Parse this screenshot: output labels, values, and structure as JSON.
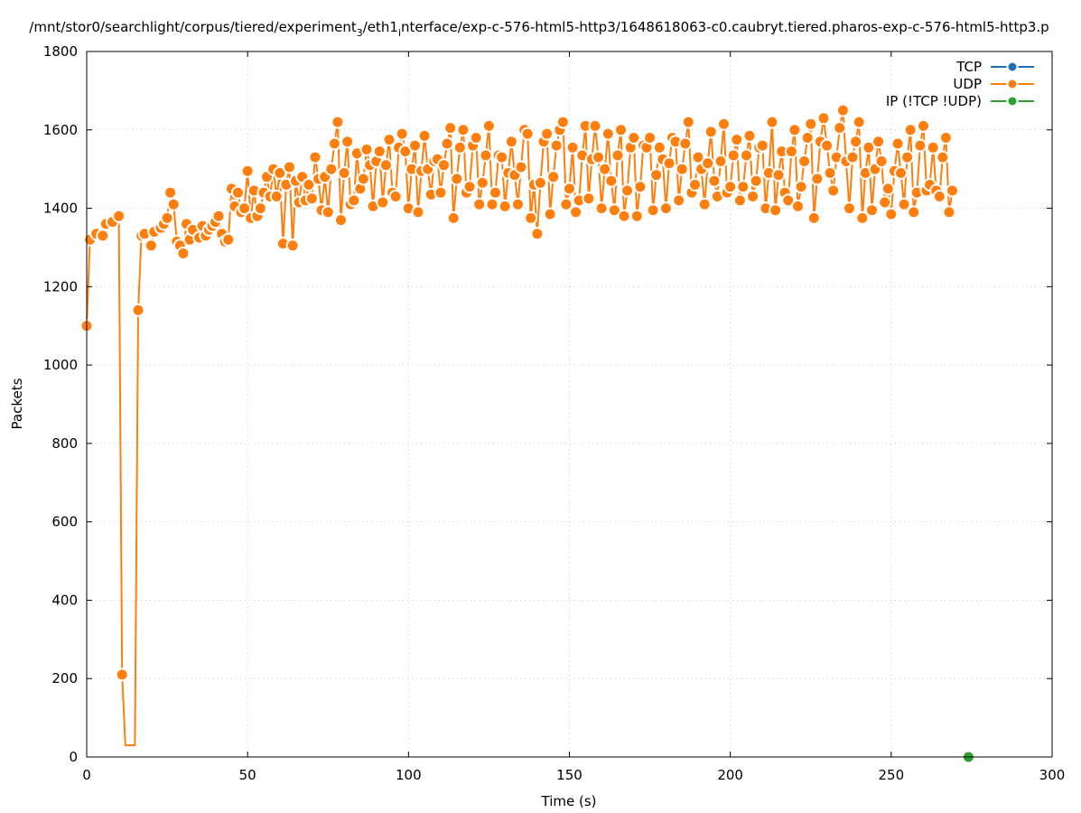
{
  "chart_data": {
    "type": "line",
    "title": "/mnt/stor0/searchlight/corpus/tiered/experiment",
    "title_sub": "3",
    "title_mid": "/eth1",
    "title_sub2": "i",
    "title_tail": "nterface/exp-c-576-html5-http3/1648618063-c0.caubryt.tiered.pharos-exp-c-576-html5-http3.p",
    "xlabel": "Time (s)",
    "ylabel": "Packets",
    "xlim": [
      0,
      300
    ],
    "ylim": [
      0,
      1800
    ],
    "xticks": [
      "0",
      "50",
      "100",
      "150",
      "200",
      "250",
      "300"
    ],
    "yticks": [
      "0",
      "200",
      "400",
      "600",
      "800",
      "1000",
      "1200",
      "1400",
      "1600",
      "1800"
    ],
    "grid": true,
    "legend_position": "top-right",
    "series": [
      {
        "name": "TCP",
        "color": "#1f6fb5",
        "points": []
      },
      {
        "name": "UDP",
        "color": "#ff7f0e",
        "points": [
          [
            0,
            1100
          ],
          [
            1,
            1320
          ],
          [
            3,
            1335
          ],
          [
            5,
            1330
          ],
          [
            6,
            1360
          ],
          [
            8,
            1365
          ],
          [
            10,
            1380
          ],
          [
            11,
            210
          ],
          [
            12,
            30
          ],
          [
            15,
            30
          ],
          [
            16,
            1140
          ],
          [
            17,
            1330
          ],
          [
            18,
            1335
          ],
          [
            20,
            1305
          ],
          [
            21,
            1340
          ],
          [
            23,
            1350
          ],
          [
            24,
            1360
          ],
          [
            25,
            1375
          ],
          [
            26,
            1440
          ],
          [
            27,
            1410
          ],
          [
            28,
            1315
          ],
          [
            29,
            1305
          ],
          [
            30,
            1285
          ],
          [
            31,
            1360
          ],
          [
            32,
            1320
          ],
          [
            33,
            1345
          ],
          [
            35,
            1325
          ],
          [
            36,
            1355
          ],
          [
            37,
            1330
          ],
          [
            38,
            1345
          ],
          [
            39,
            1355
          ],
          [
            40,
            1365
          ],
          [
            41,
            1380
          ],
          [
            42,
            1335
          ],
          [
            43,
            1315
          ],
          [
            44,
            1320
          ],
          [
            45,
            1450
          ],
          [
            46,
            1405
          ],
          [
            47,
            1440
          ],
          [
            48,
            1390
          ],
          [
            49,
            1400
          ],
          [
            50,
            1495
          ],
          [
            51,
            1375
          ],
          [
            52,
            1445
          ],
          [
            53,
            1380
          ],
          [
            54,
            1400
          ],
          [
            55,
            1440
          ],
          [
            56,
            1480
          ],
          [
            57,
            1430
          ],
          [
            58,
            1500
          ],
          [
            59,
            1430
          ],
          [
            60,
            1490
          ],
          [
            61,
            1310
          ],
          [
            62,
            1460
          ],
          [
            63,
            1505
          ],
          [
            64,
            1305
          ],
          [
            65,
            1470
          ],
          [
            66,
            1415
          ],
          [
            67,
            1480
          ],
          [
            68,
            1420
          ],
          [
            69,
            1460
          ],
          [
            70,
            1425
          ],
          [
            71,
            1530
          ],
          [
            72,
            1475
          ],
          [
            73,
            1395
          ],
          [
            74,
            1480
          ],
          [
            75,
            1390
          ],
          [
            76,
            1500
          ],
          [
            77,
            1565
          ],
          [
            78,
            1620
          ],
          [
            79,
            1370
          ],
          [
            80,
            1490
          ],
          [
            81,
            1570
          ],
          [
            82,
            1410
          ],
          [
            83,
            1420
          ],
          [
            84,
            1540
          ],
          [
            85,
            1450
          ],
          [
            86,
            1475
          ],
          [
            87,
            1550
          ],
          [
            88,
            1510
          ],
          [
            89,
            1405
          ],
          [
            90,
            1520
          ],
          [
            91,
            1545
          ],
          [
            92,
            1415
          ],
          [
            93,
            1510
          ],
          [
            94,
            1575
          ],
          [
            95,
            1440
          ],
          [
            96,
            1430
          ],
          [
            97,
            1555
          ],
          [
            98,
            1590
          ],
          [
            99,
            1545
          ],
          [
            100,
            1400
          ],
          [
            101,
            1500
          ],
          [
            102,
            1560
          ],
          [
            103,
            1390
          ],
          [
            104,
            1495
          ],
          [
            105,
            1585
          ],
          [
            106,
            1500
          ],
          [
            107,
            1435
          ],
          [
            108,
            1520
          ],
          [
            109,
            1525
          ],
          [
            110,
            1440
          ],
          [
            111,
            1510
          ],
          [
            112,
            1565
          ],
          [
            113,
            1605
          ],
          [
            114,
            1375
          ],
          [
            115,
            1475
          ],
          [
            116,
            1555
          ],
          [
            117,
            1600
          ],
          [
            118,
            1440
          ],
          [
            119,
            1455
          ],
          [
            120,
            1560
          ],
          [
            121,
            1580
          ],
          [
            122,
            1410
          ],
          [
            123,
            1465
          ],
          [
            124,
            1535
          ],
          [
            125,
            1610
          ],
          [
            126,
            1410
          ],
          [
            127,
            1440
          ],
          [
            128,
            1535
          ],
          [
            129,
            1530
          ],
          [
            130,
            1405
          ],
          [
            131,
            1490
          ],
          [
            132,
            1570
          ],
          [
            133,
            1485
          ],
          [
            134,
            1410
          ],
          [
            135,
            1505
          ],
          [
            136,
            1600
          ],
          [
            137,
            1590
          ],
          [
            138,
            1375
          ],
          [
            139,
            1460
          ],
          [
            140,
            1335
          ],
          [
            141,
            1465
          ],
          [
            142,
            1570
          ],
          [
            143,
            1590
          ],
          [
            144,
            1385
          ],
          [
            145,
            1480
          ],
          [
            146,
            1560
          ],
          [
            147,
            1600
          ],
          [
            148,
            1620
          ],
          [
            149,
            1410
          ],
          [
            150,
            1450
          ],
          [
            151,
            1555
          ],
          [
            152,
            1390
          ],
          [
            153,
            1420
          ],
          [
            154,
            1535
          ],
          [
            155,
            1610
          ],
          [
            156,
            1425
          ],
          [
            157,
            1525
          ],
          [
            158,
            1610
          ],
          [
            159,
            1530
          ],
          [
            160,
            1400
          ],
          [
            161,
            1500
          ],
          [
            162,
            1590
          ],
          [
            163,
            1470
          ],
          [
            164,
            1395
          ],
          [
            165,
            1535
          ],
          [
            166,
            1600
          ],
          [
            167,
            1380
          ],
          [
            168,
            1445
          ],
          [
            169,
            1555
          ],
          [
            170,
            1580
          ],
          [
            171,
            1380
          ],
          [
            172,
            1455
          ],
          [
            173,
            1560
          ],
          [
            174,
            1555
          ],
          [
            175,
            1580
          ],
          [
            176,
            1395
          ],
          [
            177,
            1485
          ],
          [
            178,
            1555
          ],
          [
            179,
            1525
          ],
          [
            180,
            1400
          ],
          [
            181,
            1515
          ],
          [
            182,
            1580
          ],
          [
            183,
            1570
          ],
          [
            184,
            1420
          ],
          [
            185,
            1500
          ],
          [
            186,
            1565
          ],
          [
            187,
            1620
          ],
          [
            188,
            1440
          ],
          [
            189,
            1460
          ],
          [
            190,
            1530
          ],
          [
            191,
            1500
          ],
          [
            192,
            1410
          ],
          [
            193,
            1515
          ],
          [
            194,
            1595
          ],
          [
            195,
            1470
          ],
          [
            196,
            1430
          ],
          [
            197,
            1520
          ],
          [
            198,
            1615
          ],
          [
            199,
            1440
          ],
          [
            200,
            1455
          ],
          [
            201,
            1535
          ],
          [
            202,
            1575
          ],
          [
            203,
            1420
          ],
          [
            204,
            1455
          ],
          [
            205,
            1535
          ],
          [
            206,
            1585
          ],
          [
            207,
            1430
          ],
          [
            208,
            1470
          ],
          [
            209,
            1555
          ],
          [
            210,
            1560
          ],
          [
            211,
            1400
          ],
          [
            212,
            1490
          ],
          [
            213,
            1620
          ],
          [
            214,
            1395
          ],
          [
            215,
            1485
          ],
          [
            216,
            1545
          ],
          [
            217,
            1440
          ],
          [
            218,
            1420
          ],
          [
            219,
            1545
          ],
          [
            220,
            1600
          ],
          [
            221,
            1405
          ],
          [
            222,
            1455
          ],
          [
            223,
            1520
          ],
          [
            224,
            1580
          ],
          [
            225,
            1615
          ],
          [
            226,
            1375
          ],
          [
            227,
            1475
          ],
          [
            228,
            1570
          ],
          [
            229,
            1630
          ],
          [
            230,
            1560
          ],
          [
            231,
            1490
          ],
          [
            232,
            1445
          ],
          [
            233,
            1530
          ],
          [
            234,
            1605
          ],
          [
            235,
            1650
          ],
          [
            236,
            1520
          ],
          [
            237,
            1400
          ],
          [
            238,
            1530
          ],
          [
            239,
            1570
          ],
          [
            240,
            1620
          ],
          [
            241,
            1375
          ],
          [
            242,
            1490
          ],
          [
            243,
            1555
          ],
          [
            244,
            1395
          ],
          [
            245,
            1500
          ],
          [
            246,
            1570
          ],
          [
            247,
            1520
          ],
          [
            248,
            1415
          ],
          [
            249,
            1450
          ],
          [
            250,
            1385
          ],
          [
            251,
            1495
          ],
          [
            252,
            1565
          ],
          [
            253,
            1490
          ],
          [
            254,
            1410
          ],
          [
            255,
            1530
          ],
          [
            256,
            1600
          ],
          [
            257,
            1390
          ],
          [
            258,
            1440
          ],
          [
            259,
            1560
          ],
          [
            260,
            1610
          ],
          [
            261,
            1445
          ],
          [
            262,
            1460
          ],
          [
            263,
            1555
          ],
          [
            264,
            1445
          ],
          [
            265,
            1430
          ],
          [
            266,
            1530
          ],
          [
            267,
            1580
          ],
          [
            268,
            1390
          ],
          [
            269,
            1445
          ]
        ]
      },
      {
        "name": "IP (!TCP  !UDP)",
        "color": "#2ca02c",
        "points": [
          [
            274,
            0
          ]
        ]
      }
    ]
  }
}
